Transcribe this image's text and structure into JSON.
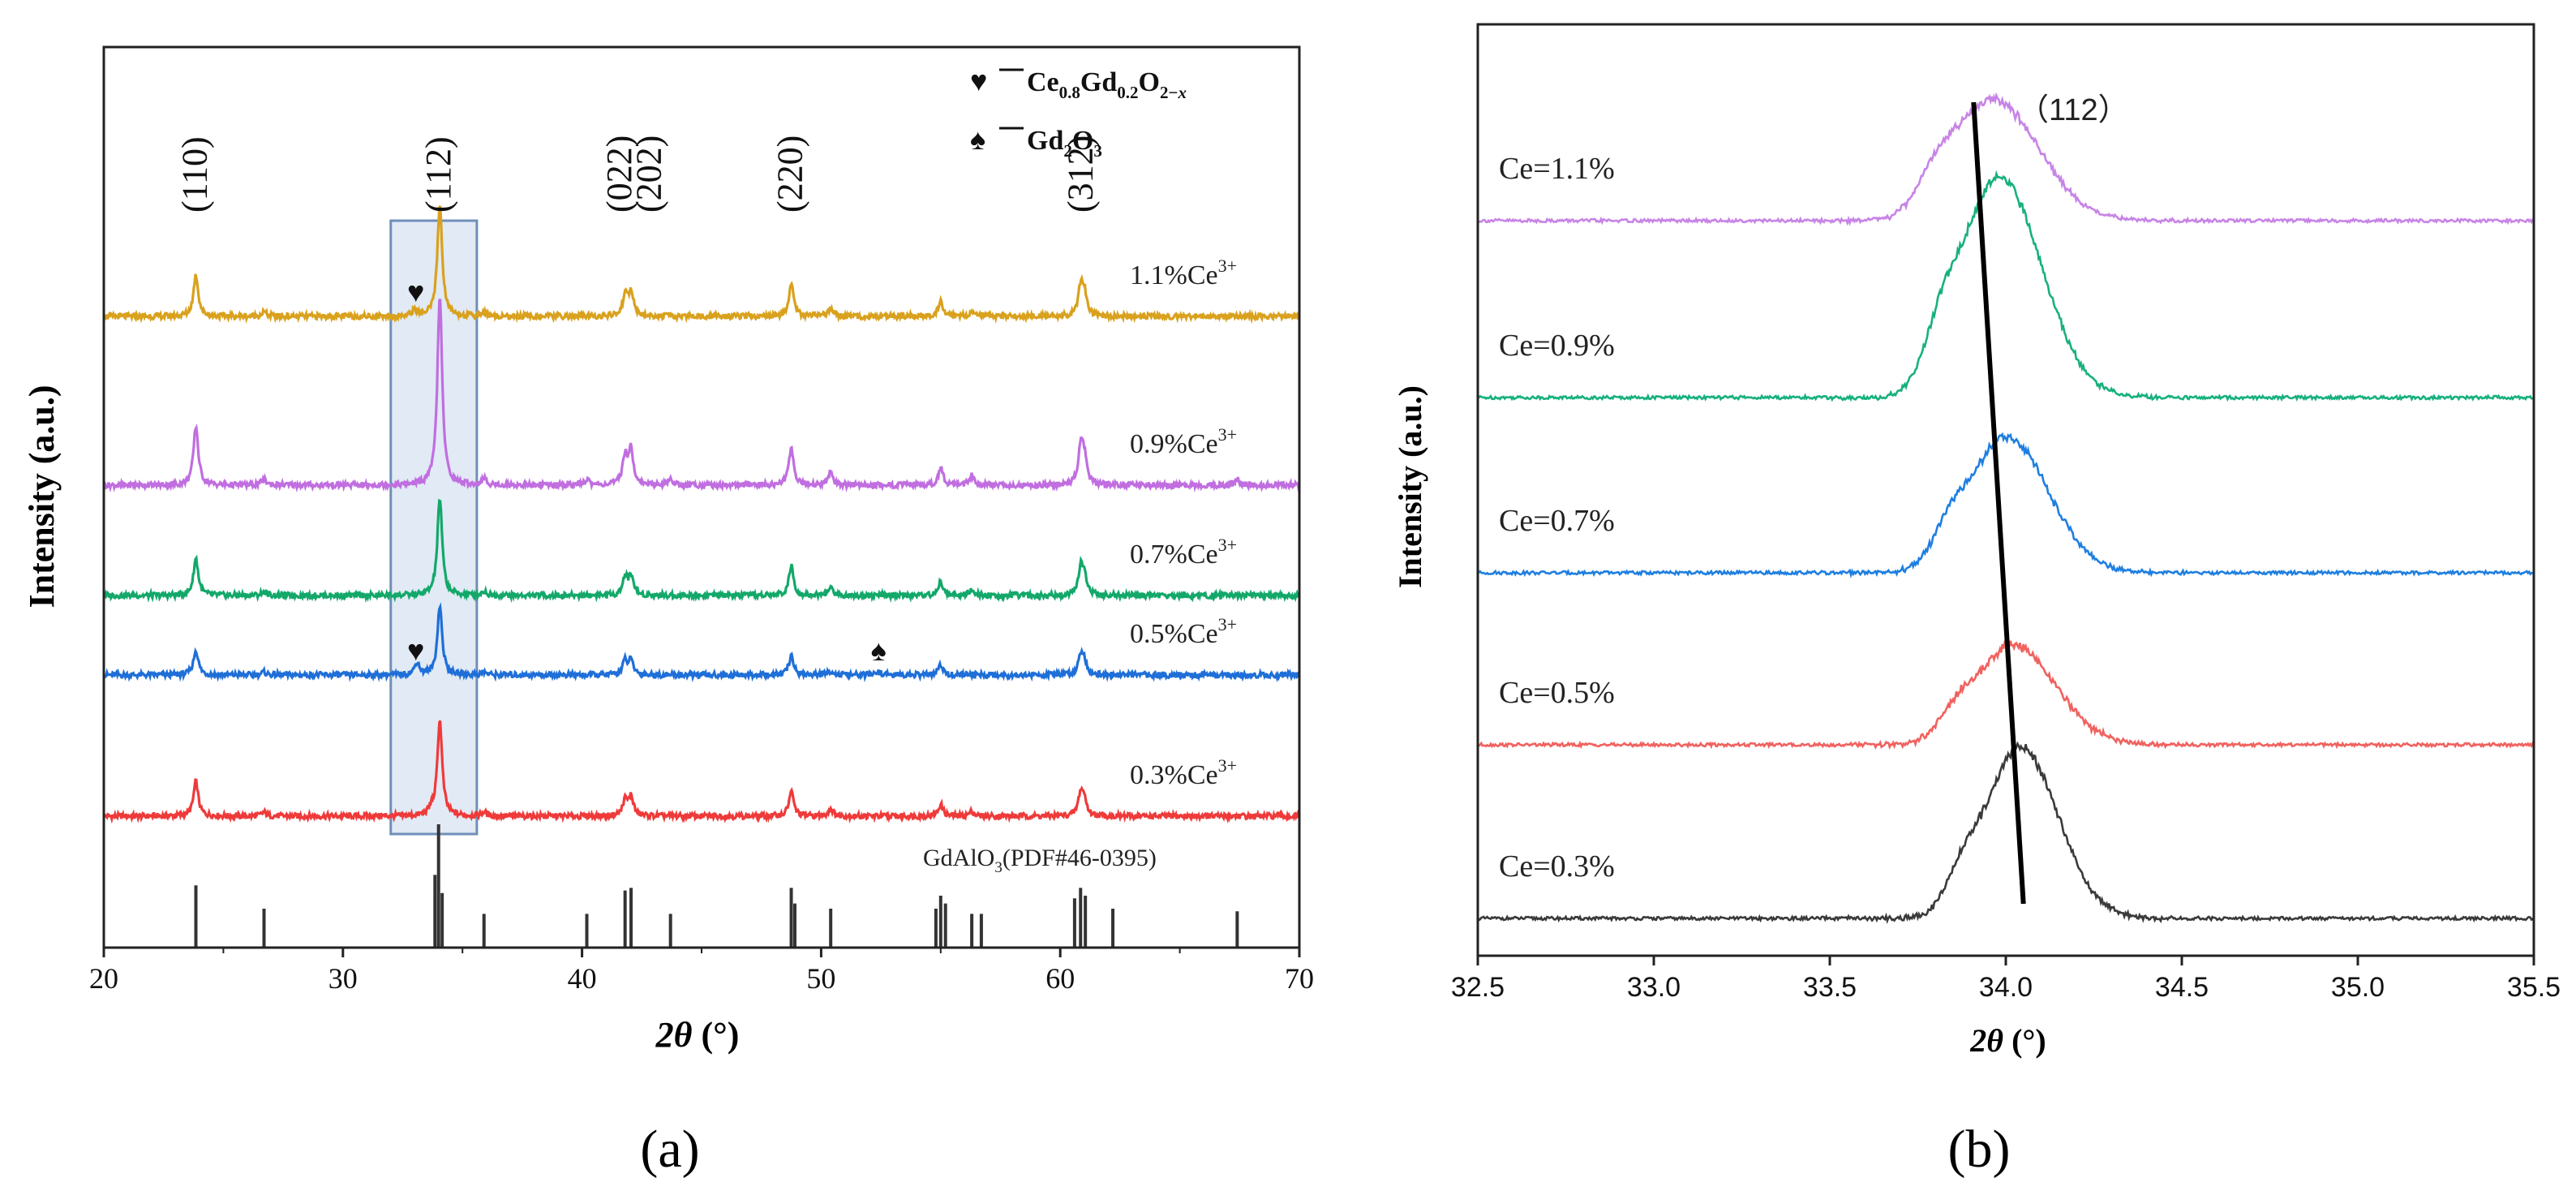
{
  "chart_data": [
    {
      "panel_label": "(a)",
      "type": "line",
      "title": "",
      "xlabel": "2θ (°)",
      "xlabel_parts": {
        "var": "2θ",
        "unit": " (°)"
      },
      "ylabel": "Intensity (a.u.)",
      "xlim": [
        20,
        70
      ],
      "xticks": [
        20,
        30,
        40,
        50,
        60,
        70
      ],
      "grid": false,
      "series": [
        {
          "name": "0.3%Ce3+",
          "label_main": "0.3%Ce",
          "label_sup": "3+",
          "color": "#ef3a3a",
          "offset": 0,
          "amp": 1.0,
          "peaks": [
            [
              23.85,
              0.36
            ],
            [
              26.7,
              0.04
            ],
            [
              33.7,
              0.05
            ],
            [
              34.05,
              1.0
            ],
            [
              35.9,
              0.04
            ],
            [
              41.8,
              0.16
            ],
            [
              42.05,
              0.2
            ],
            [
              48.75,
              0.26
            ],
            [
              50.4,
              0.08
            ],
            [
              55.0,
              0.12
            ],
            [
              56.3,
              0.05
            ],
            [
              60.85,
              0.22
            ],
            [
              61.0,
              0.16
            ]
          ]
        },
        {
          "name": "0.5%Ce3+",
          "label_main": "0.5%Ce",
          "label_sup": "3+",
          "color": "#1f6fd8",
          "offset": 1,
          "amp": 0.72,
          "peaks": [
            [
              23.85,
              0.36
            ],
            [
              26.7,
              0.04
            ],
            [
              33.1,
              0.18
            ],
            [
              34.05,
              1.0
            ],
            [
              35.9,
              0.04
            ],
            [
              41.8,
              0.2
            ],
            [
              42.05,
              0.2
            ],
            [
              48.75,
              0.28
            ],
            [
              50.4,
              0.06
            ],
            [
              52.4,
              0.05
            ],
            [
              55.0,
              0.14
            ],
            [
              60.85,
              0.26
            ],
            [
              61.0,
              0.2
            ]
          ]
        },
        {
          "name": "0.7%Ce3+",
          "label_main": "0.7%Ce",
          "label_sup": "3+",
          "color": "#13a86a",
          "offset": 2,
          "amp": 1.0,
          "peaks": [
            [
              23.85,
              0.38
            ],
            [
              26.7,
              0.04
            ],
            [
              34.05,
              1.0
            ],
            [
              35.9,
              0.04
            ],
            [
              41.8,
              0.18
            ],
            [
              42.05,
              0.2
            ],
            [
              48.75,
              0.3
            ],
            [
              50.4,
              0.08
            ],
            [
              55.0,
              0.14
            ],
            [
              56.3,
              0.05
            ],
            [
              60.85,
              0.26
            ],
            [
              61.0,
              0.2
            ]
          ]
        },
        {
          "name": "0.9%Ce3+",
          "label_main": "0.9%Ce",
          "label_sup": "3+",
          "color": "#c06ee0",
          "offset": 3,
          "amp": 1.8,
          "peaks": [
            [
              23.85,
              0.31
            ],
            [
              26.7,
              0.03
            ],
            [
              34.05,
              1.0
            ],
            [
              35.9,
              0.03
            ],
            [
              40.2,
              0.03
            ],
            [
              41.8,
              0.15
            ],
            [
              42.05,
              0.18
            ],
            [
              43.7,
              0.03
            ],
            [
              48.75,
              0.2
            ],
            [
              50.4,
              0.07
            ],
            [
              55.0,
              0.09
            ],
            [
              56.3,
              0.05
            ],
            [
              60.85,
              0.18
            ],
            [
              61.0,
              0.14
            ],
            [
              67.4,
              0.03
            ]
          ]
        },
        {
          "name": "1.1%Ce3+",
          "label_main": "1.1%Ce",
          "label_sup": "3+",
          "color": "#d9a11d",
          "offset": 4,
          "amp": 1.2,
          "peaks": [
            [
              23.85,
              0.37
            ],
            [
              26.7,
              0.04
            ],
            [
              33.0,
              0.06
            ],
            [
              34.05,
              1.0
            ],
            [
              35.9,
              0.04
            ],
            [
              41.8,
              0.18
            ],
            [
              42.05,
              0.22
            ],
            [
              48.75,
              0.3
            ],
            [
              50.4,
              0.07
            ],
            [
              55.0,
              0.14
            ],
            [
              56.3,
              0.05
            ],
            [
              60.85,
              0.24
            ],
            [
              61.0,
              0.2
            ]
          ]
        }
      ],
      "peak_labels": [
        {
          "text": "(110)",
          "x": 23.85
        },
        {
          "text": "(112)",
          "x": 34.05
        },
        {
          "text": "(022)",
          "x": 41.6
        },
        {
          "text": "(202)",
          "x": 42.85
        },
        {
          "text": "(220)",
          "x": 48.75
        },
        {
          "text": "(312)",
          "x": 60.9
        }
      ],
      "markers": [
        {
          "symbol": "♥",
          "x": 33.05,
          "series": "1.1%Ce3+"
        },
        {
          "symbol": "♥",
          "x": 33.05,
          "series": "0.5%Ce3+"
        },
        {
          "symbol": "♠",
          "x": 52.4,
          "series": "0.5%Ce3+"
        }
      ],
      "legend": [
        {
          "symbol": "♥",
          "text": "Ce0.8Gd0.2O2−x",
          "parts": [
            [
              "Ce",
              ""
            ],
            [
              "0.8",
              "sub"
            ],
            [
              "Gd",
              ""
            ],
            [
              "0.2",
              "sub"
            ],
            [
              "O",
              ""
            ],
            [
              "2−",
              "sub"
            ],
            [
              "x",
              "subi"
            ]
          ]
        },
        {
          "symbol": "♠",
          "text": "Gd2O3",
          "parts": [
            [
              "Gd",
              ""
            ],
            [
              "2",
              "sub"
            ],
            [
              "O",
              ""
            ],
            [
              "3",
              "sub"
            ]
          ]
        }
      ],
      "legend_position": "top-right",
      "highlight_region": [
        32.0,
        35.6
      ],
      "reference": {
        "label": "GdAlO3(PDF#46-0395)",
        "label_parts": [
          [
            "GdAlO",
            ""
          ],
          [
            "3",
            "sub"
          ],
          [
            "(PDF#46-0395)",
            ""
          ]
        ],
        "lines": [
          [
            23.85,
            0.48
          ],
          [
            26.7,
            0.3
          ],
          [
            33.85,
            0.56
          ],
          [
            34.0,
            0.95
          ],
          [
            34.15,
            0.42
          ],
          [
            35.9,
            0.26
          ],
          [
            40.2,
            0.26
          ],
          [
            41.8,
            0.44
          ],
          [
            42.05,
            0.46
          ],
          [
            43.7,
            0.26
          ],
          [
            48.75,
            0.46
          ],
          [
            48.9,
            0.34
          ],
          [
            50.4,
            0.3
          ],
          [
            54.8,
            0.3
          ],
          [
            55.0,
            0.4
          ],
          [
            55.2,
            0.34
          ],
          [
            56.3,
            0.26
          ],
          [
            56.7,
            0.26
          ],
          [
            60.6,
            0.38
          ],
          [
            60.85,
            0.46
          ],
          [
            61.05,
            0.4
          ],
          [
            62.2,
            0.3
          ],
          [
            67.4,
            0.28
          ]
        ]
      }
    },
    {
      "panel_label": "(b)",
      "type": "line",
      "title": "",
      "xlabel": "2θ (°)",
      "xlabel_parts": {
        "var": "2θ",
        "unit": " (°)"
      },
      "ylabel": "Intensity (a.u.)",
      "xlim": [
        32.5,
        35.5
      ],
      "xticks": [
        "32.5",
        "33.0",
        "33.5",
        "34.0",
        "34.5",
        "35.0",
        "35.5"
      ],
      "grid": false,
      "annotation": "（112）",
      "trend_line": {
        "from": [
          34.05,
          0
        ],
        "to": [
          33.95,
          5
        ]
      },
      "series": [
        {
          "name": "Ce=0.3%",
          "color": "#3a3a3a",
          "offset": 0,
          "center": 34.04,
          "height": 0.48,
          "width": 0.09
        },
        {
          "name": "Ce=0.5%",
          "color": "#f0625f",
          "offset": 1,
          "center": 34.02,
          "height": 0.28,
          "width": 0.1
        },
        {
          "name": "Ce=0.7%",
          "color": "#1f7fe0",
          "offset": 2,
          "center": 34.0,
          "height": 0.38,
          "width": 0.1
        },
        {
          "name": "Ce=0.9%",
          "color": "#17b07f",
          "offset": 3,
          "center": 33.98,
          "height": 0.62,
          "width": 0.1
        },
        {
          "name": "Ce=1.1%",
          "color": "#c784e6",
          "offset": 4,
          "center": 33.96,
          "height": 0.34,
          "width": 0.11
        }
      ]
    }
  ]
}
